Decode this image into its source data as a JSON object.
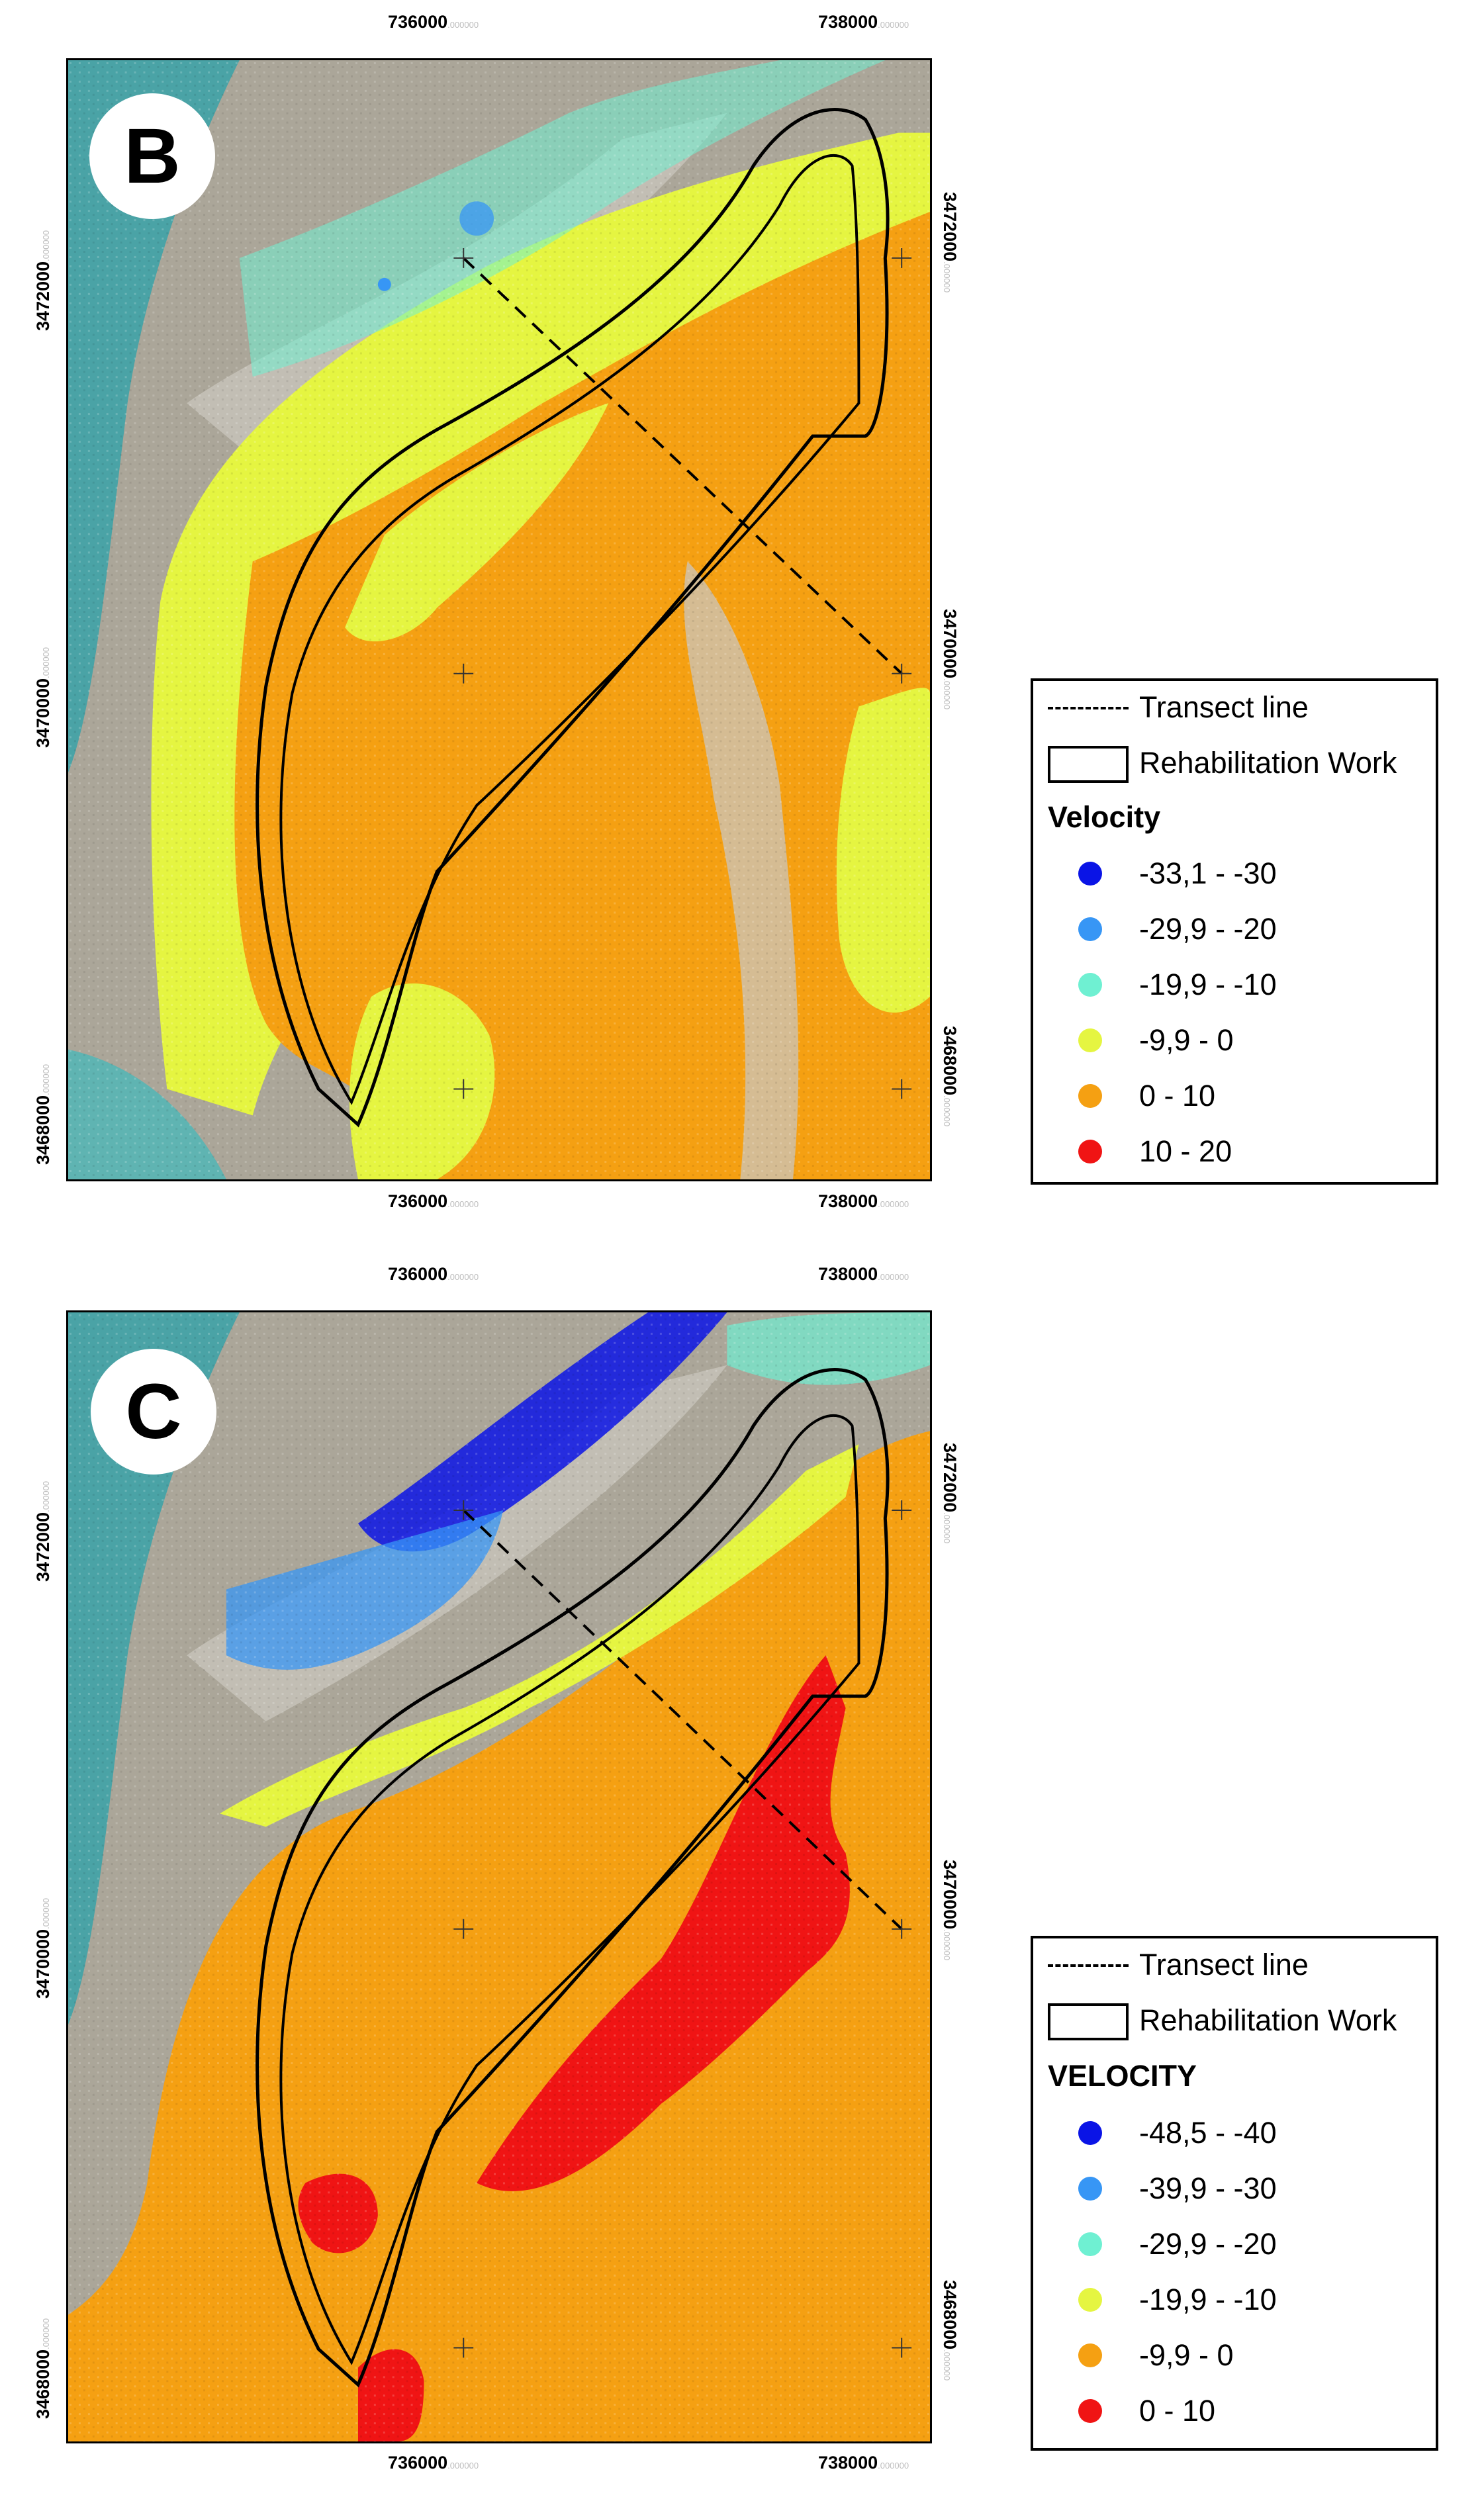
{
  "panels": {
    "b": {
      "label": "B",
      "x_ticks": [
        {
          "value": "736000",
          "decimals": ".000000"
        },
        {
          "value": "738000",
          "decimals": ".000000"
        }
      ],
      "y_ticks": [
        {
          "value": "3472000",
          "decimals": ".000000"
        },
        {
          "value": "3470000",
          "decimals": ".000000"
        },
        {
          "value": "3468000",
          "decimals": ".000000"
        }
      ],
      "legend": {
        "transect_label": "Transect line",
        "boundary_label": "Rehabilitation Work",
        "title": "Velocity",
        "classes": [
          {
            "label": "-33,1 - -30",
            "color": "#0a14e6"
          },
          {
            "label": "-29,9 - -20",
            "color": "#3796f5"
          },
          {
            "label": "-19,9 - -10",
            "color": "#6ff0d2"
          },
          {
            "label": "-9,9 - 0",
            "color": "#e5f541"
          },
          {
            "label": "0 - 10",
            "color": "#f5a012"
          },
          {
            "label": "10 - 20",
            "color": "#f01414"
          }
        ]
      }
    },
    "c": {
      "label": "C",
      "x_ticks": [
        {
          "value": "736000",
          "decimals": ".000000"
        },
        {
          "value": "738000",
          "decimals": ".000000"
        }
      ],
      "y_ticks": [
        {
          "value": "3472000",
          "decimals": ".000000"
        },
        {
          "value": "3470000",
          "decimals": ".000000"
        },
        {
          "value": "3468000",
          "decimals": ".000000"
        }
      ],
      "legend": {
        "transect_label": "Transect line",
        "boundary_label": "Rehabilitation Work",
        "title": "VELOCITY",
        "classes": [
          {
            "label": "-48,5 - -40",
            "color": "#0a14e6"
          },
          {
            "label": "-39,9 - -30",
            "color": "#3796f5"
          },
          {
            "label": "-29,9 - -20",
            "color": "#6ff0d2"
          },
          {
            "label": "-19,9 - -10",
            "color": "#e5f541"
          },
          {
            "label": "-9,9 - 0",
            "color": "#f5a012"
          },
          {
            "label": "0 - 10",
            "color": "#f01414"
          }
        ]
      }
    }
  },
  "colors": {
    "sea": "#3f9aa0",
    "terrain": "#a9a49a",
    "terrain_light": "#c9c6bf"
  }
}
